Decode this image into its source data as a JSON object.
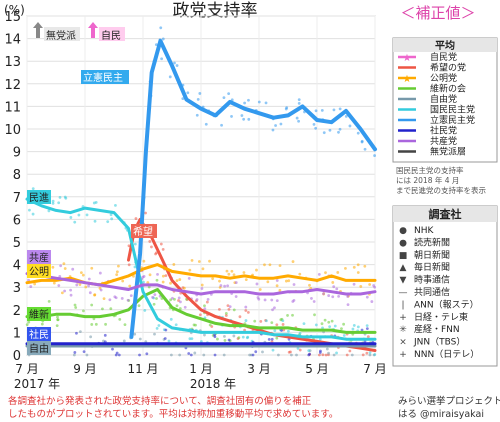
{
  "chart_data": {
    "type": "line",
    "title": "政党支持率",
    "badge": "＜補正値＞",
    "yunit": "(%)",
    "ylim": [
      0,
      15
    ],
    "yticks": [
      0,
      1,
      2,
      3,
      4,
      5,
      6,
      7,
      8,
      9,
      10,
      11,
      12,
      13,
      14,
      15
    ],
    "xlabels": [
      "7 月",
      "9 月",
      "11 月",
      "1 月",
      "3 月",
      "5 月",
      "7 月"
    ],
    "xyears": [
      "2017 年",
      "2018 年"
    ],
    "annotations": {
      "mutouha": "無党派",
      "jimin": "自民",
      "rikken": "立憲民主",
      "minshin": "民進",
      "kibou": "希望",
      "kyousan": "共産",
      "koumei": "公明",
      "ishin": "維新",
      "shamin": "社民",
      "jiyuu": "自由"
    },
    "legend_title": "平均",
    "legend_note": "国民民主党の支持率には 2018 年 4 月まで民進党の支持率を表示",
    "series": [
      {
        "name": "自民党",
        "color": "#ee66cc",
        "marker": "★",
        "x": [
          0,
          1
        ],
        "values": [
          0,
          0
        ]
      },
      {
        "name": "希望の党",
        "color": "#ee5544",
        "x": [
          3.5,
          3.7,
          3.9,
          4.1,
          4.3,
          4.6,
          5,
          5.5,
          6,
          6.5,
          7,
          7.5,
          8,
          8.5,
          9,
          9.5,
          10,
          10.5,
          11,
          11.5,
          12
        ],
        "values": [
          4.2,
          5.5,
          6.0,
          5.6,
          5.2,
          4.4,
          3.3,
          2.6,
          2.0,
          1.7,
          1.5,
          1.3,
          1.1,
          0.9,
          0.8,
          0.7,
          0.6,
          0.5,
          0.4,
          0.3,
          0.2
        ]
      },
      {
        "name": "公明党",
        "color": "#ffaa00",
        "marker": "★",
        "x": [
          0,
          0.5,
          1,
          1.5,
          2,
          2.5,
          3,
          3.5,
          4,
          4.5,
          5,
          5.5,
          6,
          6.5,
          7,
          7.5,
          8,
          8.5,
          9,
          9.5,
          10,
          10.5,
          11,
          11.5,
          12
        ],
        "values": [
          3.2,
          3.3,
          3.3,
          3.4,
          3.2,
          3.1,
          3.3,
          3.5,
          3.8,
          4.0,
          3.7,
          3.6,
          3.5,
          3.5,
          3.4,
          3.5,
          3.4,
          3.4,
          3.5,
          3.4,
          3.3,
          3.5,
          3.3,
          3.3,
          3.3
        ]
      },
      {
        "name": "維新の会",
        "color": "#66cc33",
        "x": [
          0,
          0.5,
          1,
          1.5,
          2,
          2.5,
          3,
          3.5,
          4,
          4.5,
          5,
          5.5,
          6,
          6.5,
          7,
          7.5,
          8,
          8.5,
          9,
          9.5,
          10,
          10.5,
          11,
          11.5,
          12
        ],
        "values": [
          1.7,
          1.7,
          1.8,
          1.8,
          1.7,
          1.7,
          1.8,
          2.0,
          2.6,
          2.9,
          2.1,
          1.8,
          1.6,
          1.4,
          1.3,
          1.3,
          1.2,
          1.2,
          1.2,
          1.1,
          1.1,
          1.1,
          1.0,
          1.0,
          1.0
        ]
      },
      {
        "name": "自由党",
        "color": "#7799aa",
        "x": [
          0,
          1,
          2,
          3,
          4,
          5,
          6,
          7,
          8,
          9,
          10,
          11,
          12
        ],
        "values": [
          0.4,
          0.4,
          0.4,
          0.4,
          0.4,
          0.4,
          0.4,
          0.4,
          0.4,
          0.4,
          0.4,
          0.4,
          0.4
        ]
      },
      {
        "name": "国民民主党",
        "color": "#33ccdd",
        "x": [
          0,
          0.5,
          1,
          1.5,
          2,
          2.5,
          3,
          3.5,
          4,
          4.5,
          5,
          5.5,
          6,
          6.5,
          7,
          7.5,
          8,
          8.5,
          9,
          9.5,
          10,
          10.5,
          11,
          11.5,
          12
        ],
        "values": [
          6.9,
          6.6,
          6.4,
          6.3,
          6.5,
          6.4,
          6.3,
          5.6,
          2.8,
          1.6,
          1.2,
          1.1,
          1.0,
          1.0,
          1.0,
          1.0,
          1.0,
          0.9,
          0.9,
          0.8,
          0.8,
          0.8,
          0.7,
          0.7,
          0.7
        ]
      },
      {
        "name": "立憲民主党",
        "color": "#3399ee",
        "x": [
          3.6,
          3.9,
          4.1,
          4.3,
          4.6,
          5,
          5.5,
          6,
          6.5,
          7,
          7.5,
          8,
          8.5,
          9,
          9.5,
          10,
          10.5,
          11,
          11.5,
          12
        ],
        "values": [
          0.8,
          4.5,
          9.0,
          12.5,
          13.9,
          12.8,
          11.3,
          10.9,
          10.6,
          11.2,
          10.9,
          10.7,
          10.5,
          10.6,
          11.0,
          10.4,
          10.3,
          10.8,
          10.0,
          9.1
        ]
      },
      {
        "name": "社民党",
        "color": "#2222cc",
        "x": [
          0,
          1,
          2,
          3,
          4,
          5,
          6,
          7,
          8,
          9,
          10,
          11,
          12
        ],
        "values": [
          0.5,
          0.5,
          0.5,
          0.5,
          0.5,
          0.5,
          0.5,
          0.5,
          0.5,
          0.5,
          0.5,
          0.5,
          0.5
        ]
      },
      {
        "name": "共産党",
        "color": "#aa66dd",
        "x": [
          0,
          0.5,
          1,
          1.5,
          2,
          2.5,
          3,
          3.5,
          4,
          4.5,
          5,
          5.5,
          6,
          6.5,
          7,
          7.5,
          8,
          8.5,
          9,
          9.5,
          10,
          10.5,
          11,
          11.5,
          12
        ],
        "values": [
          3.6,
          3.5,
          3.4,
          3.3,
          3.2,
          3.1,
          3.0,
          2.9,
          3.1,
          3.1,
          2.9,
          2.8,
          2.7,
          2.8,
          2.8,
          2.8,
          2.7,
          2.7,
          2.8,
          2.8,
          2.9,
          2.8,
          2.7,
          2.7,
          2.8
        ]
      },
      {
        "name": "無党派層",
        "color": "#444444",
        "x": [
          0,
          1
        ],
        "values": [
          0,
          0
        ]
      }
    ]
  },
  "surveyors": {
    "title": "調査社",
    "items": [
      {
        "icon": "●",
        "label": "NHK"
      },
      {
        "icon": "●",
        "label": "読売新聞"
      },
      {
        "icon": "■",
        "label": "朝日新聞"
      },
      {
        "icon": "▲",
        "label": "毎日新聞"
      },
      {
        "icon": "▼",
        "label": "時事通信"
      },
      {
        "icon": "—",
        "label": "共同通信"
      },
      {
        "icon": "|",
        "label": "ANN（報ステ）"
      },
      {
        "icon": "+",
        "label": "日経・テレ東"
      },
      {
        "icon": "✳",
        "label": "産経・FNN"
      },
      {
        "icon": "×",
        "label": "JNN（TBS）"
      },
      {
        "icon": "+",
        "label": "NNN（日テレ）"
      }
    ]
  },
  "footer": {
    "note_line1": "各調査社から発表された政党支持率について、調査社固有の偏りを補正",
    "note_line2": "したものがプロットされています。平均は対称加重移動平均で求めています。",
    "credit_line1": "みらい選挙プロジェクト",
    "credit_line2": "はる @miraisyakai"
  },
  "colors": {
    "accent": "#dd44aa",
    "grid": "#dddddd",
    "note": "#dd3333"
  }
}
